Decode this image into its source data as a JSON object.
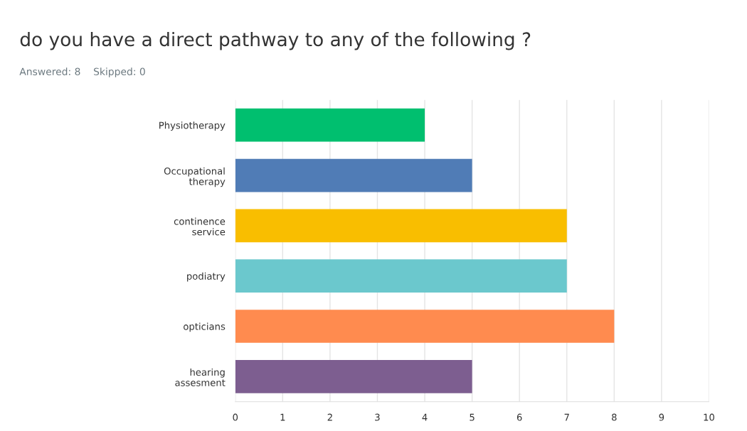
{
  "chart_data": {
    "type": "bar",
    "orientation": "horizontal",
    "title": "do you have a direct pathway to any of the following ?",
    "subtitle": "Answered: 8    Skipped: 0",
    "categories": [
      "Physiotherapy",
      "Occupational\ntherapy",
      "continence\nservice",
      "podiatry",
      "opticians",
      "hearing\nassesment"
    ],
    "values": [
      4,
      5,
      7,
      7,
      8,
      5
    ],
    "colors": [
      "#00bf6f",
      "#507cb6",
      "#f9be00",
      "#6bc8cd",
      "#ff8b4f",
      "#7d5e90"
    ],
    "xlim": [
      0,
      10
    ],
    "xticks": [
      0,
      1,
      2,
      3,
      4,
      5,
      6,
      7,
      8,
      9,
      10
    ],
    "grid": "x"
  }
}
